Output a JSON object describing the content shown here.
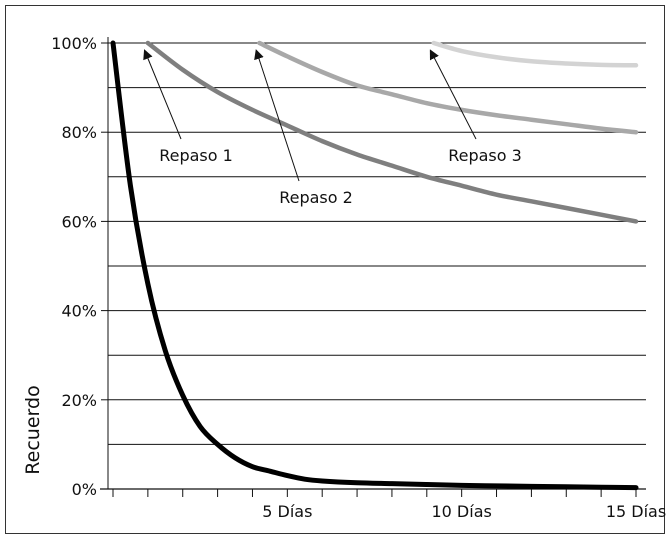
{
  "chart_data": {
    "type": "line",
    "title": "",
    "xlabel": "",
    "ylabel": "Recuerdo",
    "xlim": [
      0,
      15
    ],
    "ylim": [
      0,
      100
    ],
    "grid": "horizontal",
    "x_ticks": [
      {
        "value": 5,
        "label": "5 Días"
      },
      {
        "value": 10,
        "label": "10 Días"
      },
      {
        "value": 15,
        "label": "15 Días"
      }
    ],
    "y_ticks": [
      {
        "value": 0,
        "label": "0%"
      },
      {
        "value": 20,
        "label": "20%"
      },
      {
        "value": 40,
        "label": "40%"
      },
      {
        "value": 60,
        "label": "60%"
      },
      {
        "value": 80,
        "label": "80%"
      },
      {
        "value": 100,
        "label": "100%"
      }
    ],
    "series": [
      {
        "color": "#000000",
        "x": [
          0,
          0.5,
          1,
          1.5,
          2,
          2.5,
          3,
          3.5,
          4,
          4.5,
          5,
          5.5,
          6,
          7,
          8,
          9,
          10,
          11,
          12,
          13,
          14,
          15
        ],
        "y": [
          100,
          68,
          46,
          31,
          21,
          14,
          10,
          7,
          5,
          4,
          3,
          2.2,
          1.8,
          1.4,
          1.2,
          1.0,
          0.8,
          0.7,
          0.6,
          0.5,
          0.4,
          0.3
        ]
      },
      {
        "color": "#7f7f7f",
        "x": [
          1,
          2,
          3,
          4,
          5,
          6,
          7,
          8,
          9,
          10,
          11,
          12,
          13,
          14,
          15
        ],
        "y": [
          100,
          94,
          89,
          85,
          81.5,
          78,
          75,
          72.5,
          70,
          68,
          66,
          64.5,
          63,
          61.5,
          60
        ]
      },
      {
        "color": "#a8a8a8",
        "x": [
          4.2,
          5,
          6,
          7,
          8,
          9,
          10,
          11,
          12,
          13,
          14,
          15
        ],
        "y": [
          100,
          97,
          93.5,
          90.5,
          88.5,
          86.5,
          85,
          83.8,
          82.8,
          81.8,
          80.8,
          80
        ]
      },
      {
        "color": "#d3d3d3",
        "x": [
          9.2,
          10,
          11,
          12,
          13,
          14,
          15
        ],
        "y": [
          100,
          98.2,
          96.8,
          95.9,
          95.4,
          95.1,
          95
        ]
      }
    ],
    "annotations": [
      {
        "text": "Repaso 1",
        "point": [
          1,
          100
        ]
      },
      {
        "text": "Repaso 2",
        "point": [
          4.2,
          100
        ]
      },
      {
        "text": "Repaso 3",
        "point": [
          9.2,
          100
        ]
      }
    ]
  }
}
